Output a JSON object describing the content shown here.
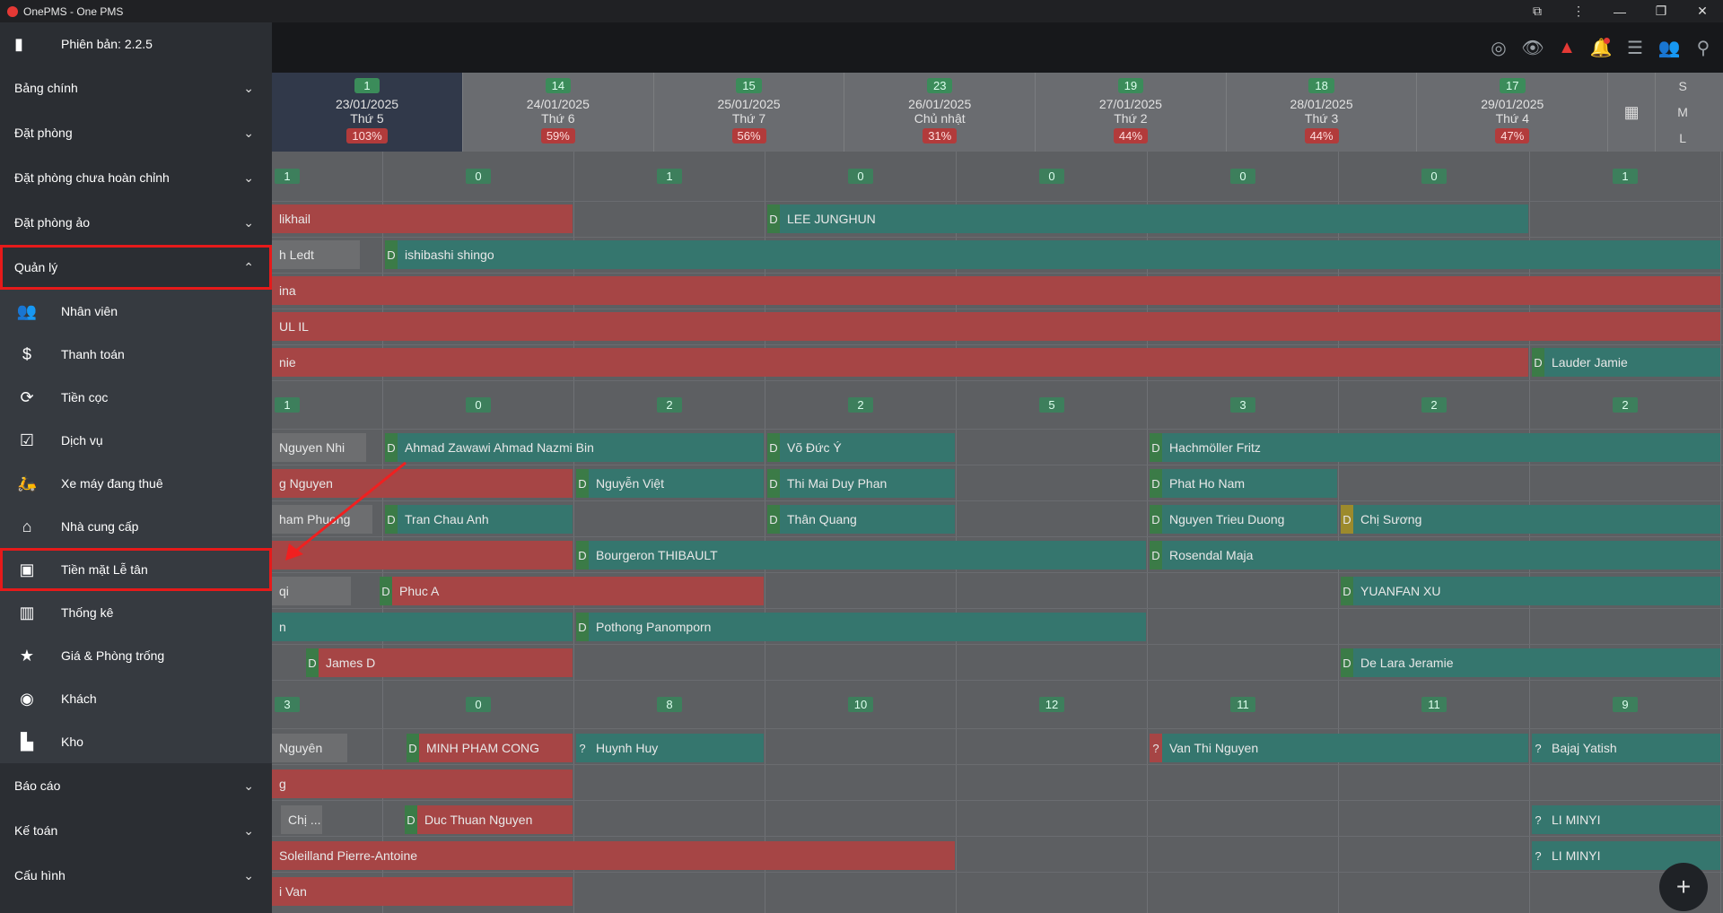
{
  "window": {
    "title": "OnePMS - One PMS"
  },
  "sidebar": {
    "version": "Phiên bản: 2.2.5",
    "sections_top": [
      {
        "label": "Bảng chính"
      },
      {
        "label": "Đặt phòng"
      },
      {
        "label": "Đặt phòng chưa hoàn chỉnh"
      },
      {
        "label": "Đặt phòng ảo"
      }
    ],
    "open_section": {
      "label": "Quản lý"
    },
    "items": [
      {
        "label": "Nhân viên",
        "icon": "people-icon"
      },
      {
        "label": "Thanh toán",
        "icon": "dollar-icon"
      },
      {
        "label": "Tiền cọc",
        "icon": "deposit-icon"
      },
      {
        "label": "Dịch vụ",
        "icon": "service-icon"
      },
      {
        "label": "Xe máy đang thuê",
        "icon": "motorbike-icon"
      },
      {
        "label": "Nhà cung cấp",
        "icon": "home-icon"
      },
      {
        "label": "Tiền mặt Lễ tân",
        "icon": "cash-icon"
      },
      {
        "label": "Thống kê",
        "icon": "bar-chart-icon"
      },
      {
        "label": "Giá & Phòng trống",
        "icon": "star-icon"
      },
      {
        "label": "Khách",
        "icon": "guest-icon"
      },
      {
        "label": "Kho",
        "icon": "warehouse-icon"
      }
    ],
    "sections_bottom": [
      {
        "label": "Báo cáo"
      },
      {
        "label": "Kế toán"
      },
      {
        "label": "Cấu hình"
      }
    ]
  },
  "dates": [
    {
      "count": "1",
      "date": "23/01/2025",
      "weekday": "Thứ 5",
      "occupancy": "103%"
    },
    {
      "count": "14",
      "date": "24/01/2025",
      "weekday": "Thứ 6",
      "occupancy": "59%"
    },
    {
      "count": "15",
      "date": "25/01/2025",
      "weekday": "Thứ 7",
      "occupancy": "56%"
    },
    {
      "count": "23",
      "date": "26/01/2025",
      "weekday": "Chủ nhật",
      "occupancy": "31%"
    },
    {
      "count": "19",
      "date": "27/01/2025",
      "weekday": "Thứ 2",
      "occupancy": "44%"
    },
    {
      "count": "18",
      "date": "28/01/2025",
      "weekday": "Thứ 3",
      "occupancy": "44%"
    },
    {
      "count": "17",
      "date": "29/01/2025",
      "weekday": "Thứ 4",
      "occupancy": "47%"
    }
  ],
  "size_toggle": [
    "S",
    "M",
    "L"
  ],
  "group_counts": [
    [
      "1",
      "0",
      "1",
      "0",
      "0",
      "0",
      "0",
      "1"
    ],
    [
      "1",
      "0",
      "2",
      "2",
      "5",
      "3",
      "2",
      "2"
    ],
    [
      "3",
      "0",
      "8",
      "10",
      "12",
      "11",
      "11",
      "9"
    ]
  ],
  "bookings": [
    {
      "name": "likhail"
    },
    {
      "tag": "D",
      "name": "LEE JUNGHUN"
    },
    {
      "name": "h Ledt"
    },
    {
      "tag": "D",
      "name": "ishibashi shingo"
    },
    {
      "name": "ina"
    },
    {
      "name": "UL IL"
    },
    {
      "name": "nie"
    },
    {
      "tag": "D",
      "name": "Lauder Jamie"
    },
    {
      "name": "Nguyen Nhi"
    },
    {
      "tag": "D",
      "name": "Ahmad Zawawi Ahmad Nazmi Bin"
    },
    {
      "tag": "D",
      "name": "Võ Đức Ý"
    },
    {
      "tag": "D",
      "name": "Hachmöller Fritz"
    },
    {
      "name": "g Nguyen"
    },
    {
      "tag": "D",
      "name": "Nguyễn Việt"
    },
    {
      "tag": "D",
      "name": "Thi Mai Duy Phan"
    },
    {
      "tag": "D",
      "name": "Phat Ho Nam"
    },
    {
      "name": "ham Phuong"
    },
    {
      "tag": "D",
      "name": "Tran Chau Anh"
    },
    {
      "tag": "D",
      "name": "Thân Quang"
    },
    {
      "tag": "D",
      "name": "Nguyen Trieu Duong"
    },
    {
      "tag": "D",
      "name": "Chị Sương"
    },
    {
      "tag": "D",
      "name": "Bourgeron THIBAULT"
    },
    {
      "tag": "D",
      "name": "Rosendal Maja"
    },
    {
      "name": "qi"
    },
    {
      "tag": "D",
      "name": "Phuc A"
    },
    {
      "tag": "D",
      "name": "YUANFAN XU"
    },
    {
      "name": "n"
    },
    {
      "tag": "D",
      "name": "Pothong Panomporn"
    },
    {
      "tag": "D",
      "name": "James D"
    },
    {
      "tag": "D",
      "name": "De Lara Jeramie"
    },
    {
      "name": "Nguyên"
    },
    {
      "tag": "D",
      "name": "MINH PHAM CONG"
    },
    {
      "tag": "?",
      "name": "Huynh Huy"
    },
    {
      "tag": "?",
      "name": "Van Thi Nguyen"
    },
    {
      "tag": "?",
      "name": "Bajaj Yatish"
    },
    {
      "name": "g"
    },
    {
      "name": "Chị ..."
    },
    {
      "tag": "D",
      "name": "Duc Thuan Nguyen"
    },
    {
      "tag": "?",
      "name": "LI MINYI"
    },
    {
      "name": "Soleilland Pierre-Antoine"
    },
    {
      "tag": "?",
      "name": "LI MINYI"
    },
    {
      "name": "i Van"
    }
  ],
  "fab": {
    "label": "+"
  }
}
